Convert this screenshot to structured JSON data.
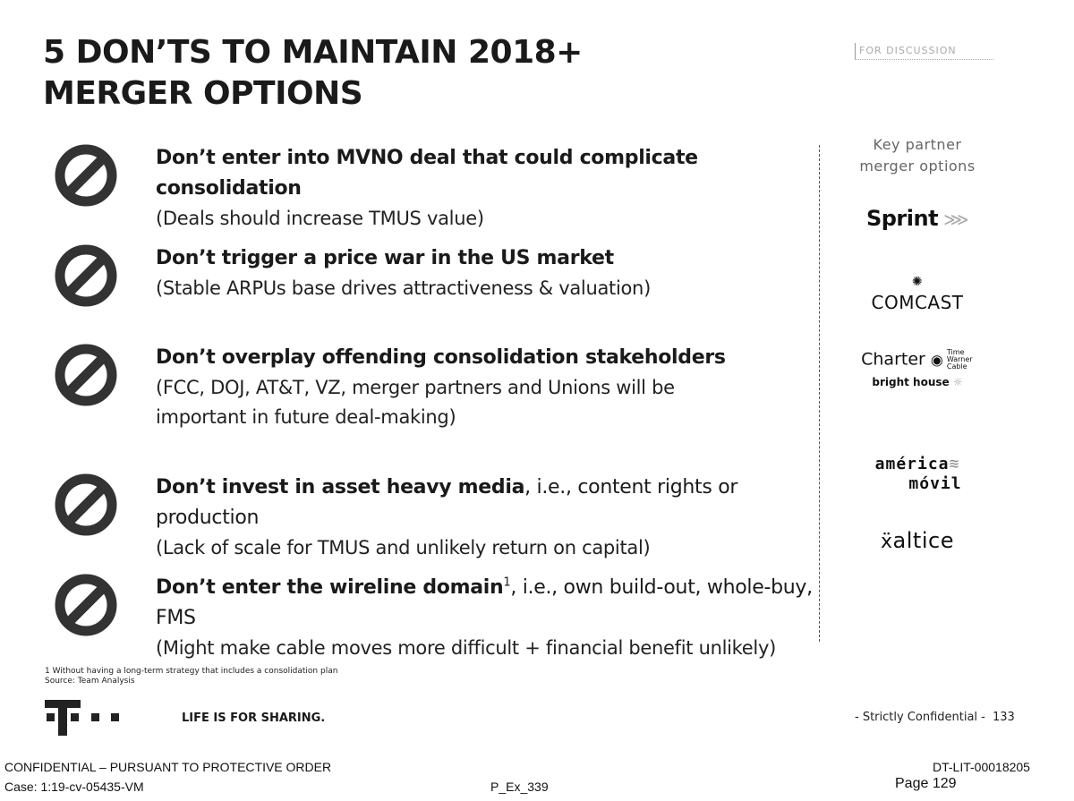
{
  "title_line1": "5 DON’TS TO MAINTAIN 2018+",
  "title_line2": "MERGER OPTIONS",
  "stamp": "FOR DISCUSSION",
  "items": [
    {
      "head_bold": "Don’t enter into MVNO deal that could complicate consolidation",
      "head_rest": "",
      "head_after": "",
      "sub": "(Deals should increase TMUS value)"
    },
    {
      "head_bold": "Don’t trigger a price war in the US market",
      "head_rest": "",
      "head_after": "",
      "sub": "(Stable ARPUs base drives attractiveness & valuation)"
    },
    {
      "head_bold": "Don’t overplay offending consolidation stakeholders",
      "head_rest": "",
      "head_after": "",
      "sub": "(FCC, DOJ, AT&T, VZ, merger partners and Unions will be important in future deal-making)"
    },
    {
      "head_bold": "Don’t invest in asset heavy media",
      "head_rest": ", i.e., content rights or production",
      "head_after": "",
      "sub": "(Lack of scale for TMUS and unlikely return on capital)"
    },
    {
      "head_bold": "Don’t enter the wireline domain",
      "head_sup": "1",
      "head_rest": ", i.e., own build-out, whole-buy, FMS",
      "sub": "(Might make cable moves more difficult + financial benefit unlikely)"
    }
  ],
  "partners": {
    "title_line1": "Key partner",
    "title_line2": "merger options",
    "sprint": "Sprint",
    "comcast": "COMCAST",
    "charter": "Charter",
    "time_warner": "Time Warner Cable",
    "bright_house": "bright house",
    "america": "américa",
    "movil": "móvil",
    "altice": "altice"
  },
  "footnote_line1": "1 Without having a long-term strategy that includes a consolidation plan",
  "footnote_line2": "Source: Team Analysis",
  "tagline": "LIFE IS FOR SHARING.",
  "confidential_note": "- Strictly Confidential -",
  "slide_number": "133",
  "footer": {
    "protective_order": "CONFIDENTIAL – PURSUANT TO PROTECTIVE ORDER",
    "case": "Case: 1:19-cv-05435-VM",
    "exhibit": "P_Ex_339",
    "doc_id": "DT-LIT-00018205",
    "page": "Page 129"
  },
  "colors": {
    "text": "#1a1a1a",
    "magenta_logo_rendered_gray": "#222222"
  }
}
